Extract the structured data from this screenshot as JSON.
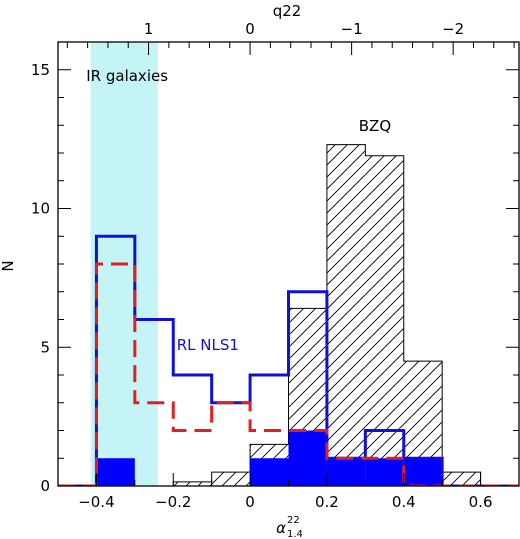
{
  "chart_data": {
    "type": "histogram",
    "xlabel_main": "α",
    "xlabel_sup": "22",
    "xlabel_sub": "1.4",
    "ylabel": "N",
    "top_axis_label": "q22",
    "xlim": [
      -0.5,
      0.7
    ],
    "ylim": [
      0,
      16
    ],
    "x_ticks": [
      -0.4,
      -0.2,
      0,
      0.2,
      0.4,
      0.6
    ],
    "x_tick_labels": [
      "−0.4",
      "−0.2",
      "0",
      "0.2",
      "0.4",
      "0.6"
    ],
    "y_ticks": [
      0,
      5,
      10,
      15
    ],
    "y_tick_labels": [
      "0",
      "5",
      "10",
      "15"
    ],
    "top_ticks": [
      {
        "alpha": -0.2643,
        "label": "1"
      },
      {
        "alpha": 0.0,
        "label": "0"
      },
      {
        "alpha": 0.2643,
        "label": "−1"
      },
      {
        "alpha": 0.5286,
        "label": "−2"
      }
    ],
    "shaded_region": {
      "x0": -0.415,
      "x1": -0.24,
      "label": "IR galaxies",
      "color": "#c4f4f6"
    },
    "bin_edges": [
      -0.5,
      -0.4,
      -0.3,
      -0.2,
      -0.1,
      0.0,
      0.1,
      0.2,
      0.3,
      0.4,
      0.5,
      0.6,
      0.7
    ],
    "series": [
      {
        "name": "BZQ",
        "style": "hatched",
        "color": "#000000",
        "bins": [
          {
            "x0": -0.2,
            "x1": -0.1,
            "y": 0.15
          },
          {
            "x0": -0.1,
            "x1": 0.0,
            "y": 0.5
          },
          {
            "x0": 0.0,
            "x1": 0.1,
            "y": 1.5
          },
          {
            "x0": 0.1,
            "x1": 0.2,
            "y": 6.4
          },
          {
            "x0": 0.2,
            "x1": 0.3,
            "y": 12.3
          },
          {
            "x0": 0.3,
            "x1": 0.35,
            "y": 11.9
          },
          {
            "x0": 0.35,
            "x1": 0.4,
            "y": 11.9
          },
          {
            "x0": 0.4,
            "x1": 0.5,
            "y": 4.5
          },
          {
            "x0": 0.5,
            "x1": 0.6,
            "y": 0.5
          }
        ]
      },
      {
        "name": "RL NLS1",
        "style": "step-solid",
        "color": "#1010d8",
        "values": [
          0,
          9,
          6,
          4,
          3,
          4,
          7,
          1,
          2,
          1,
          0,
          0
        ]
      },
      {
        "name": "",
        "style": "step-dashed",
        "color": "#e02020",
        "values": [
          0,
          8,
          3,
          2,
          3,
          2,
          2,
          1,
          1,
          0,
          0,
          0
        ]
      },
      {
        "name": "",
        "style": "filled",
        "color": "#0000ff",
        "values": [
          0,
          1,
          0,
          0,
          0,
          1,
          2,
          1,
          1,
          1,
          0,
          0
        ]
      }
    ],
    "annotations": [
      {
        "text": "IR galaxies",
        "x": -0.32,
        "y": 14.6,
        "color": "#000000"
      },
      {
        "text": "BZQ",
        "x": 0.325,
        "y": 12.8,
        "color": "#000000"
      },
      {
        "text": "RL NLS1",
        "x": -0.11,
        "y": 4.9,
        "color": "#1010d8"
      }
    ]
  }
}
